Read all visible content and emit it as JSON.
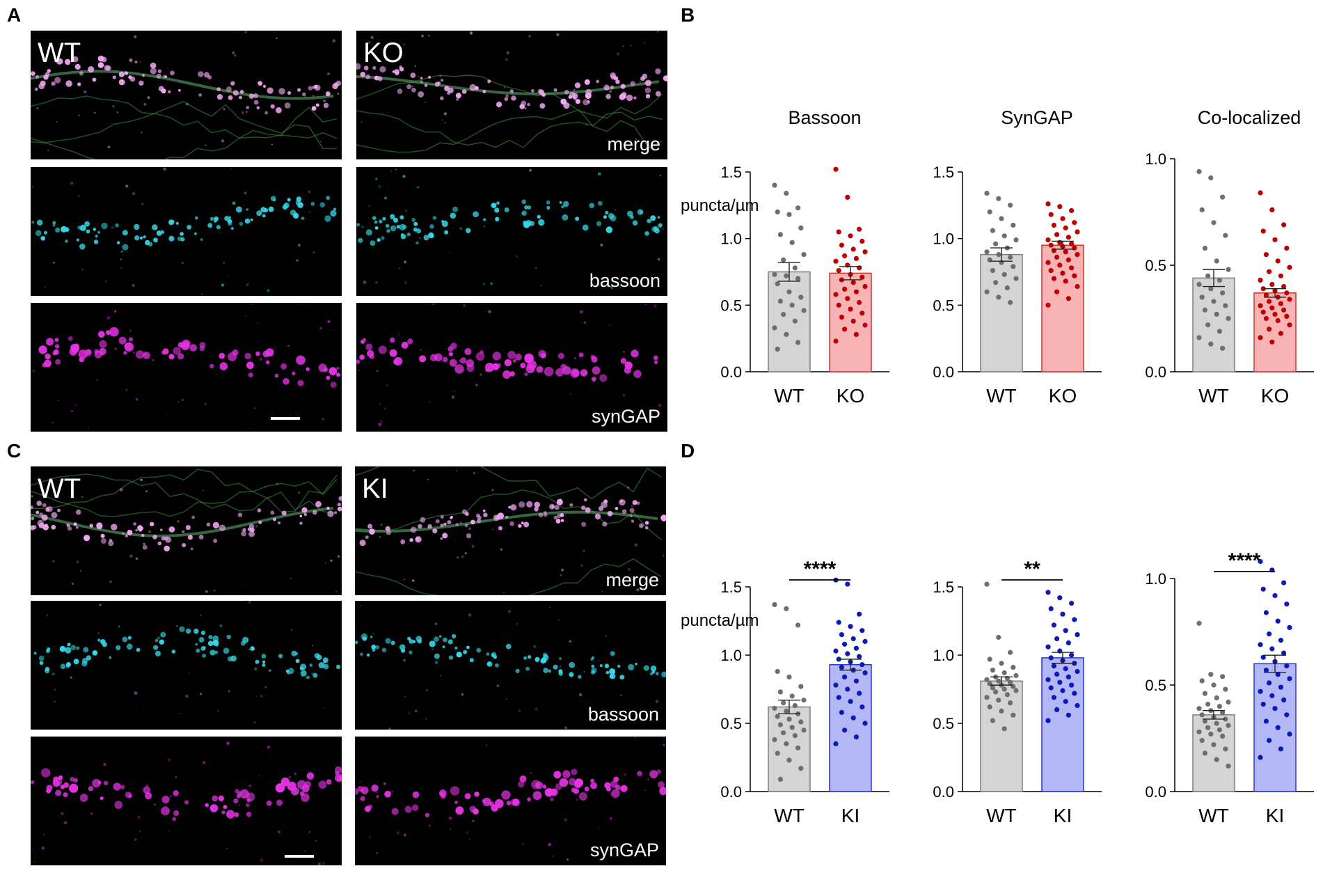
{
  "panels": {
    "A": "A",
    "B": "B",
    "C": "C",
    "D": "D"
  },
  "colors": {
    "wt_bar": "#d4d4d4",
    "wt_edge": "#7f7f7f",
    "wt_dot": "#6e6e6e",
    "ko_bar": "#f8b4b4",
    "ko_edge": "#c0392b",
    "ko_dot": "#c00000",
    "ki_bar": "#b3b7f5",
    "ki_edge": "#2b36c9",
    "ki_dot": "#0a1ab8",
    "merge": "#ffffff",
    "bassoon": "#35d7e6",
    "syngap": "#e533e5"
  },
  "micrographs": {
    "A": {
      "left_genotype": "WT",
      "right_genotype": "KO",
      "channels": [
        "merge",
        "bassoon",
        "synGAP"
      ]
    },
    "C": {
      "left_genotype": "WT",
      "right_genotype": "KI",
      "channels": [
        "merge",
        "bassoon",
        "synGAP"
      ]
    }
  },
  "chart_data": [
    {
      "type": "bar",
      "panel": "B",
      "title": "Bassoon",
      "ylabel": "puncta/µm",
      "categories": [
        "WT",
        "KO"
      ],
      "values": [
        0.75,
        0.74
      ],
      "sem": [
        0.07,
        0.05
      ],
      "ylim": [
        0,
        1.5
      ],
      "yticks": [
        "0.0",
        "0.5",
        "1.0",
        "1.5"
      ],
      "points": [
        [
          1.4,
          1.34,
          1.23,
          1.2,
          1.18,
          1.08,
          1.03,
          0.97,
          0.88,
          0.84,
          0.78,
          0.73,
          0.72,
          0.7,
          0.66,
          0.6,
          0.56,
          0.53,
          0.5,
          0.46,
          0.43,
          0.38,
          0.33,
          0.28,
          0.22,
          0.17
        ],
        [
          1.52,
          1.31,
          1.07,
          1.05,
          1.02,
          0.98,
          0.95,
          0.92,
          0.9,
          0.87,
          0.85,
          0.83,
          0.8,
          0.78,
          0.76,
          0.73,
          0.71,
          0.69,
          0.67,
          0.64,
          0.62,
          0.6,
          0.58,
          0.55,
          0.52,
          0.5,
          0.47,
          0.44,
          0.41,
          0.38,
          0.35,
          0.32,
          0.28,
          0.23
        ]
      ],
      "significance": ""
    },
    {
      "type": "bar",
      "panel": "B",
      "title": "SynGAP",
      "ylabel": "",
      "categories": [
        "WT",
        "KO"
      ],
      "values": [
        0.88,
        0.95
      ],
      "sem": [
        0.05,
        0.03
      ],
      "ylim": [
        0,
        1.5
      ],
      "yticks": [
        "0.0",
        "0.5",
        "1.0",
        "1.5"
      ],
      "points": [
        [
          1.34,
          1.3,
          1.25,
          1.2,
          1.15,
          1.1,
          1.06,
          1.02,
          0.99,
          0.96,
          0.93,
          0.9,
          0.88,
          0.86,
          0.84,
          0.82,
          0.79,
          0.76,
          0.73,
          0.7,
          0.67,
          0.63,
          0.6,
          0.56,
          0.52
        ],
        [
          1.26,
          1.24,
          1.21,
          1.18,
          1.15,
          1.12,
          1.1,
          1.08,
          1.05,
          1.03,
          1.01,
          0.99,
          0.97,
          0.96,
          0.95,
          0.94,
          0.93,
          0.91,
          0.9,
          0.88,
          0.86,
          0.84,
          0.82,
          0.8,
          0.78,
          0.76,
          0.74,
          0.72,
          0.7,
          0.68,
          0.64,
          0.6,
          0.55,
          0.5
        ]
      ],
      "significance": ""
    },
    {
      "type": "bar",
      "panel": "B",
      "title": "Co-localized",
      "ylabel": "",
      "categories": [
        "WT",
        "KO"
      ],
      "values": [
        0.44,
        0.37
      ],
      "sem": [
        0.04,
        0.02
      ],
      "ylim": [
        0,
        1.0
      ],
      "yticks": [
        "0.0",
        "0.5",
        "1.0"
      ],
      "points": [
        [
          0.94,
          0.91,
          0.82,
          0.76,
          0.7,
          0.64,
          0.58,
          0.52,
          0.48,
          0.45,
          0.43,
          0.41,
          0.39,
          0.37,
          0.35,
          0.33,
          0.31,
          0.29,
          0.27,
          0.25,
          0.22,
          0.19,
          0.16,
          0.13,
          0.11
        ],
        [
          0.84,
          0.76,
          0.69,
          0.66,
          0.62,
          0.58,
          0.55,
          0.52,
          0.49,
          0.47,
          0.45,
          0.43,
          0.41,
          0.4,
          0.39,
          0.38,
          0.37,
          0.36,
          0.35,
          0.34,
          0.33,
          0.32,
          0.31,
          0.3,
          0.29,
          0.28,
          0.27,
          0.26,
          0.25,
          0.24,
          0.22,
          0.2,
          0.18,
          0.16,
          0.14
        ]
      ],
      "significance": ""
    },
    {
      "type": "bar",
      "panel": "D",
      "title": "",
      "ylabel": "puncta/µm",
      "categories": [
        "WT",
        "KI"
      ],
      "values": [
        0.62,
        0.93
      ],
      "sem": [
        0.05,
        0.04
      ],
      "ylim": [
        0,
        1.5
      ],
      "yticks": [
        "0.0",
        "0.5",
        "1.0",
        "1.5"
      ],
      "points": [
        [
          1.37,
          1.34,
          1.22,
          0.88,
          0.84,
          0.77,
          0.73,
          0.7,
          0.67,
          0.65,
          0.63,
          0.61,
          0.59,
          0.57,
          0.55,
          0.53,
          0.51,
          0.49,
          0.47,
          0.45,
          0.43,
          0.41,
          0.38,
          0.35,
          0.32,
          0.28,
          0.23,
          0.17,
          0.09
        ],
        [
          1.55,
          1.52,
          1.3,
          1.24,
          1.21,
          1.18,
          1.15,
          1.12,
          1.1,
          1.08,
          1.05,
          1.03,
          1.01,
          0.99,
          0.97,
          0.95,
          0.93,
          0.91,
          0.89,
          0.87,
          0.84,
          0.81,
          0.78,
          0.75,
          0.72,
          0.69,
          0.66,
          0.62,
          0.58,
          0.54,
          0.5,
          0.45,
          0.4,
          0.35
        ]
      ],
      "significance": "****"
    },
    {
      "type": "bar",
      "panel": "D",
      "title": "",
      "ylabel": "",
      "categories": [
        "WT",
        "KI"
      ],
      "values": [
        0.81,
        0.98
      ],
      "sem": [
        0.03,
        0.04
      ],
      "ylim": [
        0,
        1.5
      ],
      "yticks": [
        "0.0",
        "0.5",
        "1.0",
        "1.5"
      ],
      "points": [
        [
          1.52,
          1.13,
          1.02,
          0.97,
          0.94,
          0.91,
          0.89,
          0.87,
          0.85,
          0.84,
          0.83,
          0.82,
          0.81,
          0.8,
          0.79,
          0.78,
          0.77,
          0.76,
          0.75,
          0.74,
          0.73,
          0.71,
          0.69,
          0.67,
          0.65,
          0.62,
          0.59,
          0.56,
          0.52,
          0.46
        ],
        [
          1.46,
          1.42,
          1.38,
          1.34,
          1.3,
          1.26,
          1.22,
          1.18,
          1.15,
          1.12,
          1.09,
          1.06,
          1.03,
          1.0,
          0.98,
          0.96,
          0.94,
          0.92,
          0.9,
          0.88,
          0.86,
          0.84,
          0.82,
          0.8,
          0.78,
          0.76,
          0.74,
          0.72,
          0.69,
          0.66,
          0.63,
          0.6,
          0.56,
          0.52
        ]
      ],
      "significance": "**"
    },
    {
      "type": "bar",
      "panel": "D",
      "title": "",
      "ylabel": "",
      "categories": [
        "WT",
        "KI"
      ],
      "values": [
        0.36,
        0.6
      ],
      "sem": [
        0.02,
        0.04
      ],
      "ylim": [
        0,
        1.0
      ],
      "yticks": [
        "0.0",
        "0.5",
        "1.0"
      ],
      "points": [
        [
          0.79,
          0.55,
          0.54,
          0.52,
          0.5,
          0.48,
          0.46,
          0.44,
          0.42,
          0.41,
          0.4,
          0.39,
          0.38,
          0.37,
          0.36,
          0.35,
          0.34,
          0.33,
          0.32,
          0.31,
          0.3,
          0.29,
          0.28,
          0.27,
          0.26,
          0.24,
          0.22,
          0.2,
          0.18,
          0.15,
          0.12
        ],
        [
          1.08,
          1.04,
          0.98,
          0.95,
          0.92,
          0.88,
          0.84,
          0.8,
          0.77,
          0.74,
          0.71,
          0.69,
          0.67,
          0.65,
          0.63,
          0.61,
          0.59,
          0.57,
          0.55,
          0.53,
          0.51,
          0.49,
          0.47,
          0.45,
          0.43,
          0.41,
          0.39,
          0.36,
          0.33,
          0.3,
          0.27,
          0.24,
          0.2,
          0.16
        ]
      ],
      "significance": "****"
    }
  ]
}
